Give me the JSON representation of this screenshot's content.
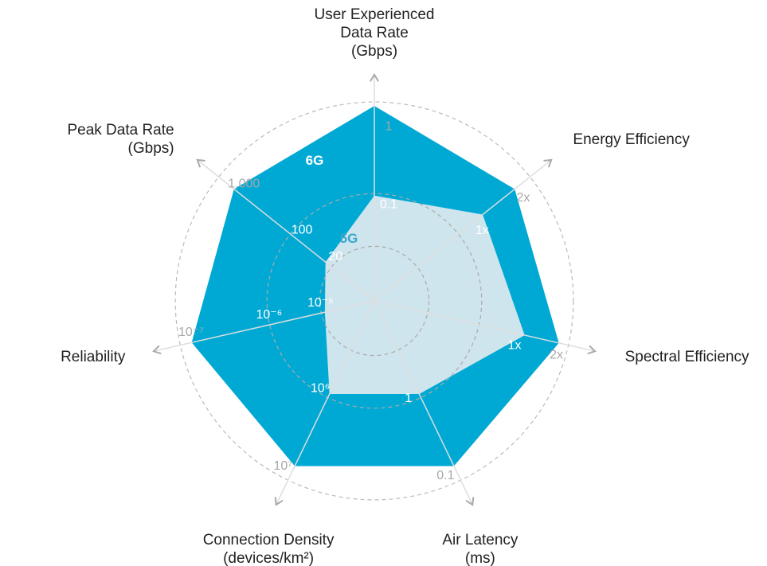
{
  "colors": {
    "sixg_fill": "#00a9d4",
    "fiveg_fill": "#cfe5ee",
    "axis_line": "#dddddd",
    "grid_ring": "#aaaaaa",
    "outer_ring": "#bbbbbb",
    "arrow": "#aaaaaa",
    "sixg_label": "#ffffff",
    "fiveg_label": "#38a6cc"
  },
  "chart_data": {
    "type": "radar",
    "scale": "normalized rank per axis (0 = center, 1 = outer ring)",
    "axes": [
      {
        "name": "User Experienced Data Rate",
        "label_lines": [
          "User Experienced",
          "Data Rate",
          "(Gbps)"
        ],
        "ticks": [
          {
            "r": 0.5,
            "text": "0.1"
          },
          {
            "r": 0.9,
            "text": "1"
          }
        ]
      },
      {
        "name": "Energy Efficiency",
        "label_lines": [
          "Energy Efficiency"
        ],
        "ticks": [
          {
            "r": 0.66,
            "text": "1x"
          },
          {
            "r": 0.93,
            "text": "2x"
          }
        ]
      },
      {
        "name": "Spectral Efficiency",
        "label_lines": [
          "Spectral Efficiency"
        ],
        "ticks": [
          {
            "r": 0.75,
            "text": "1x"
          },
          {
            "r": 0.97,
            "text": "2x"
          }
        ]
      },
      {
        "name": "Air Latency",
        "label_lines": [
          "Air Latency",
          "(ms)"
        ],
        "ticks": [
          {
            "r": 0.52,
            "text": "1"
          },
          {
            "r": 0.96,
            "text": "0.1"
          }
        ]
      },
      {
        "name": "Connection Density",
        "label_lines": [
          "Connection Density",
          "(devices/km²)"
        ],
        "ticks": [
          {
            "r": 0.52,
            "text": "10⁶"
          },
          {
            "r": 0.96,
            "text": "10⁷"
          }
        ]
      },
      {
        "name": "Reliability",
        "label_lines": [
          "Reliability"
        ],
        "ticks": [
          {
            "r": 0.27,
            "text": "10⁻⁵"
          },
          {
            "r": 0.54,
            "text": "10⁻⁶"
          },
          {
            "r": 0.95,
            "text": "10⁻⁷"
          }
        ]
      },
      {
        "name": "Peak Data Rate",
        "label_lines": [
          "Peak Data Rate",
          "(Gbps)"
        ],
        "ticks": [
          {
            "r": 0.3,
            "text": "20"
          },
          {
            "r": 0.52,
            "text": "100"
          },
          {
            "r": 0.9,
            "text": "1,000"
          }
        ]
      }
    ],
    "series": [
      {
        "name": "6G",
        "values": [
          1.0,
          0.92,
          0.97,
          0.94,
          0.94,
          0.96,
          0.92
        ]
      },
      {
        "name": "5G",
        "values": [
          0.54,
          0.71,
          0.79,
          0.53,
          0.53,
          0.26,
          0.32
        ]
      }
    ],
    "rings": [
      0.28,
      0.55
    ],
    "outer_ring": 1.02
  }
}
